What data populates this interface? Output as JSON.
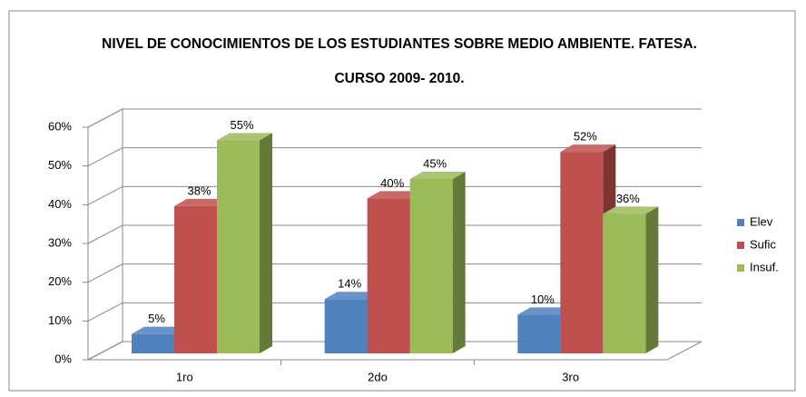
{
  "chart_data": {
    "type": "bar3d",
    "title": "NIVEL DE CONOCIMIENTOS DE LOS ESTUDIANTES SOBRE MEDIO AMBIENTE. FATESA. CURSO 2009- 2010.",
    "categories": [
      "1ro",
      "2do",
      "3ro"
    ],
    "series": [
      {
        "name": "Elev",
        "color": "#4f81bd",
        "values": [
          5,
          14,
          10
        ],
        "value_labels": [
          "5%",
          "14%",
          "10%"
        ]
      },
      {
        "name": "Sufic",
        "color": "#c0504d",
        "values": [
          38,
          40,
          52
        ],
        "value_labels": [
          "38%",
          "40%",
          "52%"
        ]
      },
      {
        "name": "Insuf.",
        "color": "#9bbb59",
        "values": [
          55,
          45,
          36
        ],
        "value_labels": [
          "55%",
          "45%",
          "36%"
        ]
      }
    ],
    "ylim": [
      0,
      60
    ],
    "yticks": [
      {
        "value": 0,
        "label": "0%"
      },
      {
        "value": 10,
        "label": "10%"
      },
      {
        "value": 20,
        "label": "20%"
      },
      {
        "value": 30,
        "label": "30%"
      },
      {
        "value": 40,
        "label": "40%"
      },
      {
        "value": 50,
        "label": "50%"
      },
      {
        "value": 60,
        "label": "60%"
      }
    ],
    "grid": true,
    "legend": "right"
  }
}
